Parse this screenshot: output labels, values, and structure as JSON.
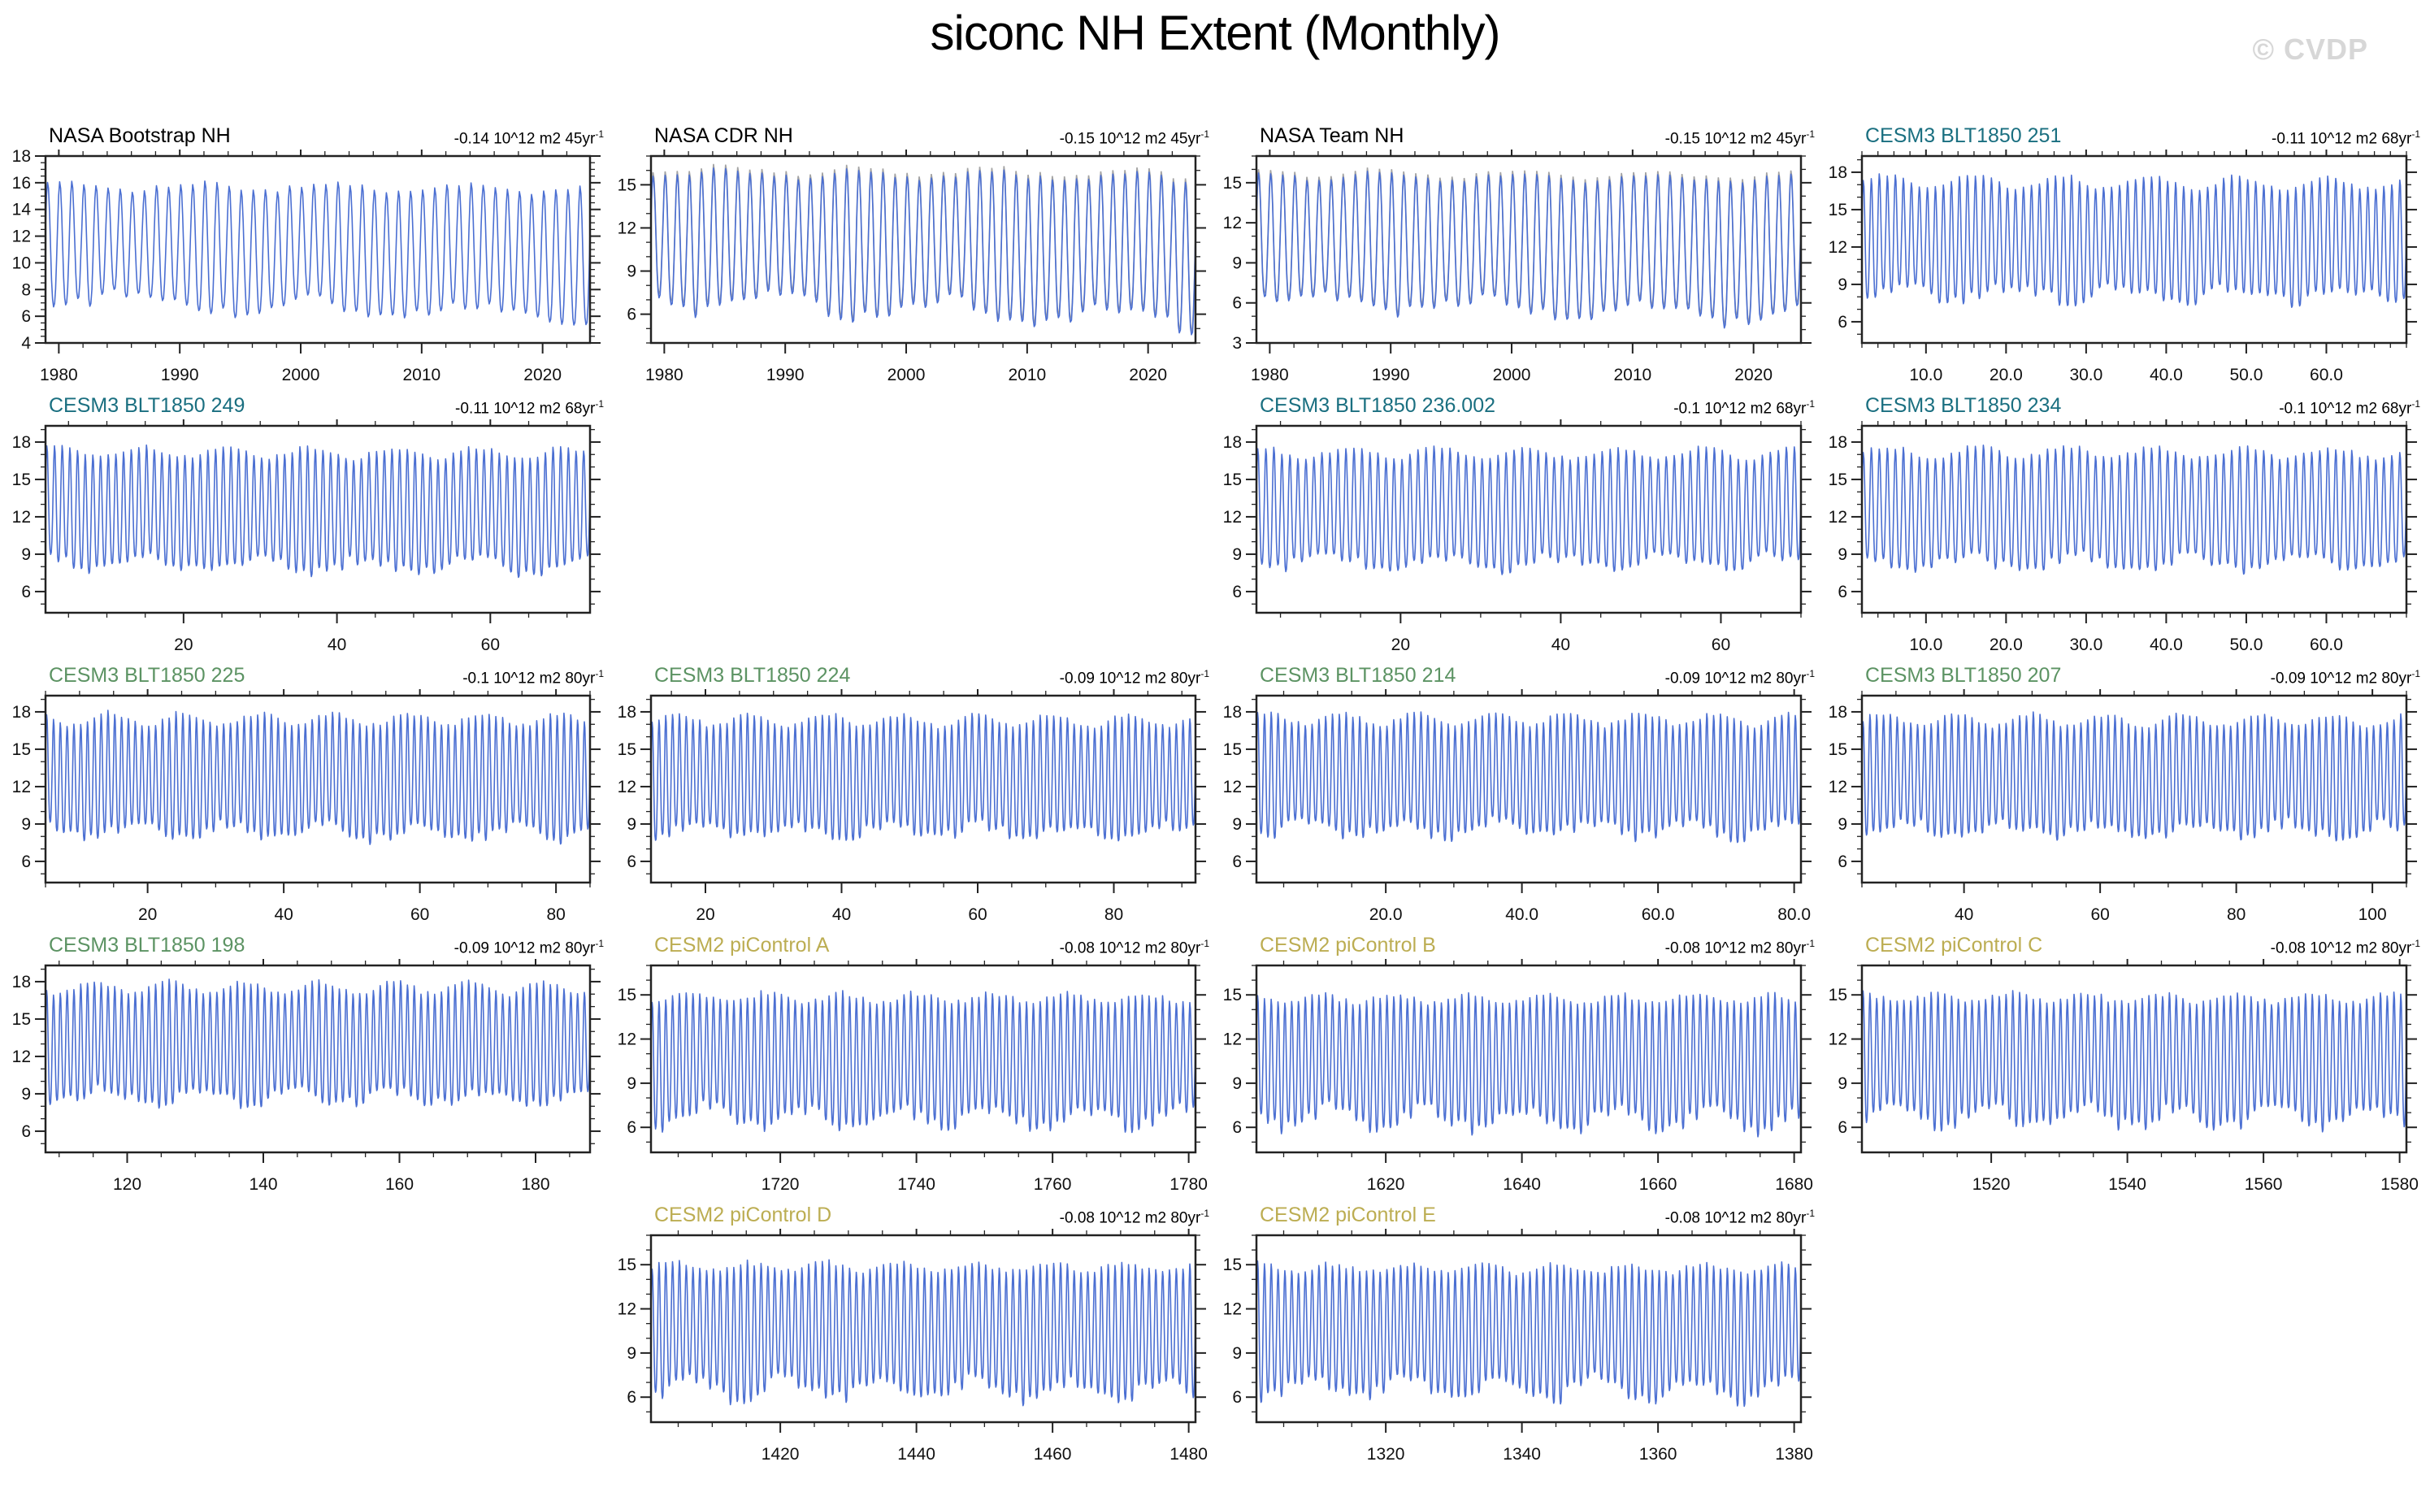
{
  "page": {
    "title": "siconc NH Extent (Monthly)",
    "watermark": "© CVDP"
  },
  "colors": {
    "nasa": "#000000",
    "cesm3_teal": "#1a6f80",
    "cesm3_green": "#5c9363",
    "cesm2_olive": "#bcad52",
    "line": "#4b6fd2",
    "overlay": "#a3a3a3",
    "frame": "#222222",
    "watermark_gray": "#d7d7d7"
  },
  "grid": {
    "rows": 5,
    "cols": 4,
    "empty_cells": [
      [
        2,
        2
      ],
      [
        5,
        1
      ],
      [
        5,
        4
      ]
    ]
  },
  "chart_data": [
    {
      "type": "line",
      "title": "NASA Bootstrap NH",
      "color_key": "nasa",
      "trend": "-0.14 10^12 m2 45yr",
      "trend_sup": "-1",
      "row": 1,
      "col": 1,
      "x_range": [
        1978.9,
        2023.92
      ],
      "x_ticks": [
        1980,
        1990,
        2000,
        2010,
        2020
      ],
      "x_tick_labels": [
        "1980",
        "1990",
        "2000",
        "2010",
        "2020"
      ],
      "x_minor_step": 2,
      "y_range": [
        4,
        18
      ],
      "y_ticks": [
        18,
        16,
        14,
        12,
        10,
        8,
        6,
        4
      ],
      "y_minor_step": 0.5,
      "gray_overlay": false,
      "series": {
        "peak": 15.85,
        "peak_var": 0.3,
        "trough": 7.3,
        "trough_var": 0.7,
        "peak_trend": -0.3,
        "trough_trend": -1.4,
        "sharpness": 1.25,
        "seed": 101,
        "points_per_year": 12
      }
    },
    {
      "type": "line",
      "title": "NASA CDR NH",
      "color_key": "nasa",
      "trend": "-0.15 10^12 m2 45yr",
      "trend_sup": "-1",
      "row": 1,
      "col": 2,
      "x_range": [
        1978.9,
        2023.92
      ],
      "x_ticks": [
        1980,
        1990,
        2000,
        2010,
        2020
      ],
      "x_tick_labels": [
        "1980",
        "1990",
        "2000",
        "2010",
        "2020"
      ],
      "x_minor_step": 2,
      "y_range": [
        4,
        17
      ],
      "y_ticks": [
        15,
        12,
        9,
        6
      ],
      "y_minor_step": 1,
      "gray_overlay": true,
      "series": {
        "peak": 15.85,
        "peak_var": 0.3,
        "trough": 6.9,
        "trough_var": 0.7,
        "peak_trend": -0.3,
        "trough_trend": -1.4,
        "sharpness": 1.25,
        "seed": 102,
        "points_per_year": 12
      }
    },
    {
      "type": "line",
      "title": "NASA Team NH",
      "color_key": "nasa",
      "trend": "-0.15 10^12 m2 45yr",
      "trend_sup": "-1",
      "row": 1,
      "col": 3,
      "x_range": [
        1978.9,
        2023.92
      ],
      "x_ticks": [
        1980,
        1990,
        2000,
        2010,
        2020
      ],
      "x_tick_labels": [
        "1980",
        "1990",
        "2000",
        "2010",
        "2020"
      ],
      "x_minor_step": 2,
      "y_range": [
        3,
        17
      ],
      "y_ticks": [
        15,
        12,
        9,
        6,
        3
      ],
      "y_minor_step": 1,
      "gray_overlay": true,
      "series": {
        "peak": 15.6,
        "peak_var": 0.3,
        "trough": 6.3,
        "trough_var": 0.7,
        "peak_trend": -0.3,
        "trough_trend": -1.5,
        "sharpness": 1.3,
        "seed": 103,
        "points_per_year": 12
      }
    },
    {
      "type": "line",
      "title": "CESM3 BLT1850 251",
      "color_key": "cesm3_teal",
      "trend": "-0.11 10^12 m2 68yr",
      "trend_sup": "-1",
      "row": 1,
      "col": 4,
      "x_range": [
        2,
        70
      ],
      "x_ticks": [
        10,
        20,
        30,
        40,
        50,
        60
      ],
      "x_tick_labels": [
        "10.0",
        "20.0",
        "30.0",
        "40.0",
        "50.0",
        "60.0"
      ],
      "x_minor_step": 2,
      "y_range": [
        4.3,
        19.3
      ],
      "y_ticks": [
        18,
        15,
        12,
        9,
        6
      ],
      "y_minor_step": 1,
      "gray_overlay": false,
      "series": {
        "peak": 17.3,
        "peak_var": 0.5,
        "trough": 8.3,
        "trough_var": 0.55,
        "peak_trend": -0.15,
        "trough_trend": -0.2,
        "sharpness": 1.35,
        "seed": 104,
        "points_per_year": 12
      }
    },
    {
      "type": "line",
      "title": "CESM3 BLT1850 249",
      "color_key": "cesm3_teal",
      "trend": "-0.11 10^12 m2 68yr",
      "trend_sup": "-1",
      "row": 2,
      "col": 1,
      "x_range": [
        2,
        73
      ],
      "x_ticks": [
        20,
        40,
        60
      ],
      "x_tick_labels": [
        "20",
        "40",
        "60"
      ],
      "x_minor_step": 5,
      "y_range": [
        4.3,
        19.3
      ],
      "y_ticks": [
        18,
        15,
        12,
        9,
        6
      ],
      "y_minor_step": 1,
      "gray_overlay": false,
      "series": {
        "peak": 17.25,
        "peak_var": 0.45,
        "trough": 8.2,
        "trough_var": 0.6,
        "peak_trend": -0.1,
        "trough_trend": -0.2,
        "sharpness": 1.35,
        "seed": 105,
        "points_per_year": 12
      }
    },
    {
      "type": "line",
      "title": "CESM3 BLT1850 236.002",
      "color_key": "cesm3_teal",
      "trend": "-0.1 10^12 m2 68yr",
      "trend_sup": "-1",
      "row": 2,
      "col": 3,
      "x_range": [
        2,
        70
      ],
      "x_ticks": [
        20,
        40,
        60
      ],
      "x_tick_labels": [
        "20",
        "40",
        "60"
      ],
      "x_minor_step": 5,
      "y_range": [
        4.3,
        19.3
      ],
      "y_ticks": [
        18,
        15,
        12,
        9,
        6
      ],
      "y_minor_step": 1,
      "gray_overlay": false,
      "series": {
        "peak": 17.2,
        "peak_var": 0.45,
        "trough": 8.4,
        "trough_var": 0.55,
        "peak_trend": -0.1,
        "trough_trend": -0.15,
        "sharpness": 1.35,
        "seed": 106,
        "points_per_year": 12
      }
    },
    {
      "type": "line",
      "title": "CESM3 BLT1850 234",
      "color_key": "cesm3_teal",
      "trend": "-0.1 10^12 m2 68yr",
      "trend_sup": "-1",
      "row": 2,
      "col": 4,
      "x_range": [
        2,
        70
      ],
      "x_ticks": [
        10,
        20,
        30,
        40,
        50,
        60
      ],
      "x_tick_labels": [
        "10.0",
        "20.0",
        "30.0",
        "40.0",
        "50.0",
        "60.0"
      ],
      "x_minor_step": 2,
      "y_range": [
        4.3,
        19.3
      ],
      "y_ticks": [
        18,
        15,
        12,
        9,
        6
      ],
      "y_minor_step": 1,
      "gray_overlay": false,
      "series": {
        "peak": 17.25,
        "peak_var": 0.45,
        "trough": 8.3,
        "trough_var": 0.55,
        "peak_trend": -0.1,
        "trough_trend": -0.15,
        "sharpness": 1.35,
        "seed": 107,
        "points_per_year": 12
      }
    },
    {
      "type": "line",
      "title": "CESM3 BLT1850 225",
      "color_key": "cesm3_green",
      "trend": "-0.1 10^12 m2 80yr",
      "trend_sup": "-1",
      "row": 3,
      "col": 1,
      "x_range": [
        5,
        85
      ],
      "x_ticks": [
        20,
        40,
        60,
        80
      ],
      "x_tick_labels": [
        "20",
        "40",
        "60",
        "80"
      ],
      "x_minor_step": 5,
      "y_range": [
        4.3,
        19.3
      ],
      "y_ticks": [
        18,
        15,
        12,
        9,
        6
      ],
      "y_minor_step": 1,
      "gray_overlay": false,
      "series": {
        "peak": 17.5,
        "peak_var": 0.5,
        "trough": 8.4,
        "trough_var": 0.55,
        "peak_trend": -0.1,
        "trough_trend": -0.15,
        "sharpness": 1.35,
        "seed": 108,
        "points_per_year": 12
      }
    },
    {
      "type": "line",
      "title": "CESM3 BLT1850 224",
      "color_key": "cesm3_green",
      "trend": "-0.09 10^12 m2 80yr",
      "trend_sup": "-1",
      "row": 3,
      "col": 2,
      "x_range": [
        12,
        92
      ],
      "x_ticks": [
        20,
        40,
        60,
        80
      ],
      "x_tick_labels": [
        "20",
        "40",
        "60",
        "80"
      ],
      "x_minor_step": 5,
      "y_range": [
        4.3,
        19.3
      ],
      "y_ticks": [
        18,
        15,
        12,
        9,
        6
      ],
      "y_minor_step": 1,
      "gray_overlay": false,
      "series": {
        "peak": 17.4,
        "peak_var": 0.5,
        "trough": 8.5,
        "trough_var": 0.55,
        "peak_trend": -0.1,
        "trough_trend": -0.15,
        "sharpness": 1.35,
        "seed": 109,
        "points_per_year": 12
      }
    },
    {
      "type": "line",
      "title": "CESM3 BLT1850 214",
      "color_key": "cesm3_green",
      "trend": "-0.09 10^12 m2 80yr",
      "trend_sup": "-1",
      "row": 3,
      "col": 3,
      "x_range": [
        1,
        81
      ],
      "x_ticks": [
        20,
        40,
        60,
        80
      ],
      "x_tick_labels": [
        "20.0",
        "40.0",
        "60.0",
        "80.0"
      ],
      "x_minor_step": 5,
      "y_range": [
        4.3,
        19.3
      ],
      "y_ticks": [
        18,
        15,
        12,
        9,
        6
      ],
      "y_minor_step": 1,
      "gray_overlay": false,
      "series": {
        "peak": 17.5,
        "peak_var": 0.5,
        "trough": 8.6,
        "trough_var": 0.6,
        "peak_trend": -0.1,
        "trough_trend": -0.15,
        "sharpness": 1.35,
        "seed": 110,
        "points_per_year": 12
      }
    },
    {
      "type": "line",
      "title": "CESM3 BLT1850 207",
      "color_key": "cesm3_green",
      "trend": "-0.09 10^12 m2 80yr",
      "trend_sup": "-1",
      "row": 3,
      "col": 4,
      "x_range": [
        25,
        105
      ],
      "x_ticks": [
        40,
        60,
        80,
        100
      ],
      "x_tick_labels": [
        "40",
        "60",
        "80",
        "100"
      ],
      "x_minor_step": 5,
      "y_range": [
        4.3,
        19.3
      ],
      "y_ticks": [
        18,
        15,
        12,
        9,
        6
      ],
      "y_minor_step": 1,
      "gray_overlay": false,
      "series": {
        "peak": 17.4,
        "peak_var": 0.5,
        "trough": 8.6,
        "trough_var": 0.55,
        "peak_trend": -0.1,
        "trough_trend": -0.15,
        "sharpness": 1.35,
        "seed": 111,
        "points_per_year": 12
      }
    },
    {
      "type": "line",
      "title": "CESM3 BLT1850 198",
      "color_key": "cesm3_green",
      "trend": "-0.09 10^12 m2 80yr",
      "trend_sup": "-1",
      "row": 4,
      "col": 1,
      "x_range": [
        108,
        188
      ],
      "x_ticks": [
        120,
        140,
        160,
        180
      ],
      "x_tick_labels": [
        "120",
        "140",
        "160",
        "180"
      ],
      "x_minor_step": 5,
      "y_range": [
        4.3,
        19.3
      ],
      "y_ticks": [
        18,
        15,
        12,
        9,
        6
      ],
      "y_minor_step": 1,
      "gray_overlay": false,
      "series": {
        "peak": 17.6,
        "peak_var": 0.5,
        "trough": 8.8,
        "trough_var": 0.55,
        "peak_trend": -0.1,
        "trough_trend": -0.15,
        "sharpness": 1.35,
        "seed": 112,
        "points_per_year": 12
      }
    },
    {
      "type": "line",
      "title": "CESM2 piControl A",
      "color_key": "cesm2_olive",
      "trend": "-0.08 10^12 m2 80yr",
      "trend_sup": "-1",
      "row": 4,
      "col": 2,
      "x_range": [
        1701,
        1781
      ],
      "x_ticks": [
        1720,
        1740,
        1760,
        1780
      ],
      "x_tick_labels": [
        "1720",
        "1740",
        "1760",
        "1780"
      ],
      "x_minor_step": 5,
      "y_range": [
        4.3,
        17
      ],
      "y_ticks": [
        15,
        12,
        9,
        6
      ],
      "y_minor_step": 1,
      "gray_overlay": false,
      "series": {
        "peak": 14.85,
        "peak_var": 0.3,
        "trough": 6.7,
        "trough_var": 0.65,
        "peak_trend": -0.05,
        "trough_trend": -0.1,
        "sharpness": 1.3,
        "seed": 113,
        "points_per_year": 12
      }
    },
    {
      "type": "line",
      "title": "CESM2 piControl B",
      "color_key": "cesm2_olive",
      "trend": "-0.08 10^12 m2 80yr",
      "trend_sup": "-1",
      "row": 4,
      "col": 3,
      "x_range": [
        1601,
        1681
      ],
      "x_ticks": [
        1620,
        1640,
        1660,
        1680
      ],
      "x_tick_labels": [
        "1620",
        "1640",
        "1660",
        "1680"
      ],
      "x_minor_step": 5,
      "y_range": [
        4.3,
        17
      ],
      "y_ticks": [
        15,
        12,
        9,
        6
      ],
      "y_minor_step": 1,
      "gray_overlay": false,
      "series": {
        "peak": 14.8,
        "peak_var": 0.3,
        "trough": 6.6,
        "trough_var": 0.7,
        "peak_trend": -0.05,
        "trough_trend": -0.1,
        "sharpness": 1.3,
        "seed": 114,
        "points_per_year": 12
      }
    },
    {
      "type": "line",
      "title": "CESM2 piControl C",
      "color_key": "cesm2_olive",
      "trend": "-0.08 10^12 m2 80yr",
      "trend_sup": "-1",
      "row": 4,
      "col": 4,
      "x_range": [
        1501,
        1581
      ],
      "x_ticks": [
        1520,
        1540,
        1560,
        1580
      ],
      "x_tick_labels": [
        "1520",
        "1540",
        "1560",
        "1580"
      ],
      "x_minor_step": 5,
      "y_range": [
        4.3,
        17
      ],
      "y_ticks": [
        15,
        12,
        9,
        6
      ],
      "y_minor_step": 1,
      "gray_overlay": false,
      "series": {
        "peak": 14.85,
        "peak_var": 0.3,
        "trough": 6.7,
        "trough_var": 0.65,
        "peak_trend": -0.05,
        "trough_trend": -0.1,
        "sharpness": 1.3,
        "seed": 115,
        "points_per_year": 12
      }
    },
    {
      "type": "line",
      "title": "CESM2 piControl D",
      "color_key": "cesm2_olive",
      "trend": "-0.08 10^12 m2 80yr",
      "trend_sup": "-1",
      "row": 5,
      "col": 2,
      "x_range": [
        1401,
        1481
      ],
      "x_ticks": [
        1420,
        1440,
        1460,
        1480
      ],
      "x_tick_labels": [
        "1420",
        "1440",
        "1460",
        "1480"
      ],
      "x_minor_step": 5,
      "y_range": [
        4.3,
        17
      ],
      "y_ticks": [
        15,
        12,
        9,
        6
      ],
      "y_minor_step": 1,
      "gray_overlay": false,
      "series": {
        "peak": 14.9,
        "peak_var": 0.3,
        "trough": 6.6,
        "trough_var": 0.7,
        "peak_trend": -0.05,
        "trough_trend": -0.1,
        "sharpness": 1.3,
        "seed": 116,
        "points_per_year": 12
      }
    },
    {
      "type": "line",
      "title": "CESM2 piControl E",
      "color_key": "cesm2_olive",
      "trend": "-0.08 10^12 m2 80yr",
      "trend_sup": "-1",
      "row": 5,
      "col": 3,
      "x_range": [
        1301,
        1381
      ],
      "x_ticks": [
        1320,
        1340,
        1360,
        1380
      ],
      "x_tick_labels": [
        "1320",
        "1340",
        "1360",
        "1380"
      ],
      "x_minor_step": 5,
      "y_range": [
        4.3,
        17
      ],
      "y_ticks": [
        15,
        12,
        9,
        6
      ],
      "y_minor_step": 1,
      "gray_overlay": false,
      "series": {
        "peak": 14.8,
        "peak_var": 0.3,
        "trough": 6.6,
        "trough_var": 0.7,
        "peak_trend": -0.05,
        "trough_trend": -0.1,
        "sharpness": 1.3,
        "seed": 117,
        "points_per_year": 12
      }
    }
  ]
}
